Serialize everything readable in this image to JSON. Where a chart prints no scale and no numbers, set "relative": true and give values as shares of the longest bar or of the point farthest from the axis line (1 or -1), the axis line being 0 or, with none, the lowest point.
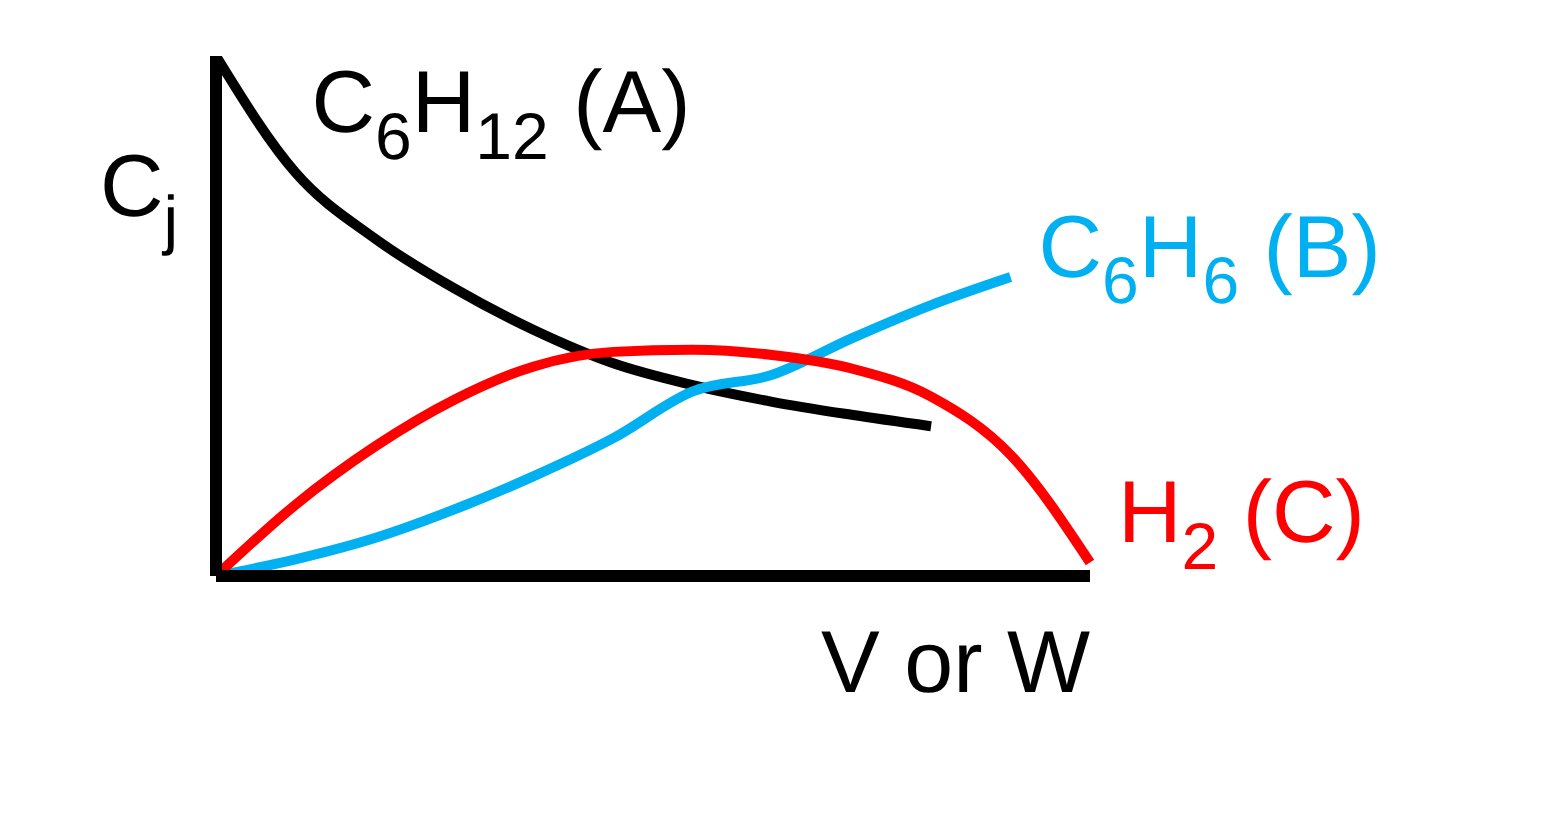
{
  "chart_data": {
    "type": "line",
    "relative": true,
    "xlabel": "V or W",
    "ylabel": "C$_{j}$",
    "marker": "none",
    "line_style": "solid",
    "categories": [
      null,
      null,
      null,
      null,
      null,
      null,
      null,
      null,
      null,
      null,
      null,
      null
    ],
    "series": [
      {
        "name": "C$_{6}$H$_{12}$ (A)",
        "color": "#000000",
        "values": [
          1.0,
          0.776,
          0.649,
          0.553,
          0.473,
          0.409,
          0.367,
          0.335,
          0.31,
          0.288,
          null,
          null
        ]
      },
      {
        "name": "C$_{6}$H$_{6}$ (B)",
        "color": "#00b0f0",
        "values": [
          0,
          0.032,
          0.073,
          0.128,
          0.192,
          0.265,
          0.355,
          0.387,
          0.457,
          0.521,
          0.575,
          null
        ]
      },
      {
        "name": "H$_{2}$ (C)",
        "color": "#ff0000",
        "values": [
          0,
          0.137,
          0.249,
          0.339,
          0.403,
          0.431,
          0.435,
          0.425,
          0.399,
          0.345,
          0.233,
          0.026
        ]
      }
    ]
  }
}
